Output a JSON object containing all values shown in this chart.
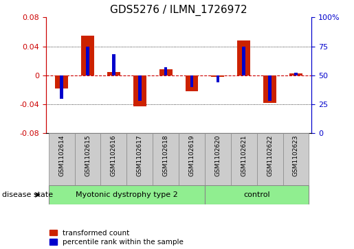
{
  "title": "GDS5276 / ILMN_1726972",
  "samples": [
    "GSM1102614",
    "GSM1102615",
    "GSM1102616",
    "GSM1102617",
    "GSM1102618",
    "GSM1102619",
    "GSM1102620",
    "GSM1102621",
    "GSM1102622",
    "GSM1102623"
  ],
  "red_values": [
    -0.018,
    0.055,
    0.005,
    -0.043,
    0.008,
    -0.022,
    -0.002,
    0.048,
    -0.038,
    0.003
  ],
  "blue_values_pct": [
    30,
    75,
    68,
    28,
    57,
    40,
    44,
    75,
    28,
    52
  ],
  "ylim": [
    -0.08,
    0.08
  ],
  "yticks_left": [
    -0.08,
    -0.04,
    0,
    0.04,
    0.08
  ],
  "yticks_right": [
    0,
    25,
    50,
    75,
    100
  ],
  "left_axis_color": "#cc0000",
  "right_axis_color": "#0000cc",
  "bar_red_color": "#cc2200",
  "bar_blue_color": "#0000cc",
  "group1_label": "Myotonic dystrophy type 2",
  "group2_label": "control",
  "group1_count": 6,
  "group2_count": 4,
  "disease_state_label": "disease state",
  "legend_red": "transformed count",
  "legend_blue": "percentile rank within the sample",
  "bg_color": "#ffffff",
  "plot_bg_color": "#ffffff",
  "group_bg_color": "#cccccc",
  "group1_fill": "#90ee90",
  "group2_fill": "#90ee90",
  "zero_line_color": "#cc0000",
  "grid_color": "#000000",
  "title_fontsize": 11,
  "tick_fontsize": 8,
  "label_fontsize": 8
}
